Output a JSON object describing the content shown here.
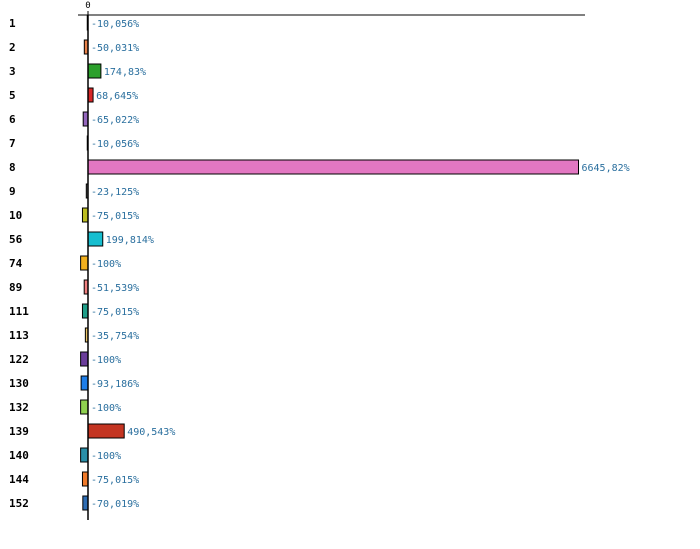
{
  "chart_data": {
    "type": "bar",
    "orientation": "horizontal",
    "title": "",
    "xlabel": "",
    "ylabel": "",
    "x_tick_labels": [
      "0"
    ],
    "xlim": [
      -100,
      6700
    ],
    "grid": false,
    "legend": "none",
    "categories": [
      "1",
      "2",
      "3",
      "5",
      "6",
      "7",
      "8",
      "9",
      "10",
      "56",
      "74",
      "89",
      "111",
      "113",
      "122",
      "130",
      "132",
      "139",
      "140",
      "144",
      "152"
    ],
    "values": [
      -10.056,
      -50.031,
      174.83,
      68.645,
      -65.022,
      -10.056,
      6645.82,
      -23.125,
      -75.015,
      199.814,
      -100,
      -51.539,
      -75.015,
      -35.754,
      -100,
      -93.186,
      -100,
      490.543,
      -100,
      -75.015,
      -70.019
    ],
    "value_labels": [
      "-10,056%",
      "-50,031%",
      "174,83%",
      "68,645%",
      "-65,022%",
      "-10,056%",
      "6645,82%",
      "-23,125%",
      "-75,015%",
      "199,814%",
      "-100%",
      "-51,539%",
      "-75,015%",
      "-35,754%",
      "-100%",
      "-93,186%",
      "-100%",
      "490,543%",
      "-100%",
      "-75,015%",
      "-70,019%"
    ],
    "colors": [
      "#3b6fb6",
      "#e8824a",
      "#2ca02c",
      "#d62728",
      "#9467bd",
      "#8c564b",
      "#e377c2",
      "#7f7f7f",
      "#bcbd22",
      "#17becf",
      "#f2b01e",
      "#f08080",
      "#1f9e89",
      "#e9c46a",
      "#6a3d9a",
      "#1e7ee8",
      "#8fd14f",
      "#c43522",
      "#2a8fa8",
      "#f07a2a",
      "#2e6db4"
    ]
  }
}
